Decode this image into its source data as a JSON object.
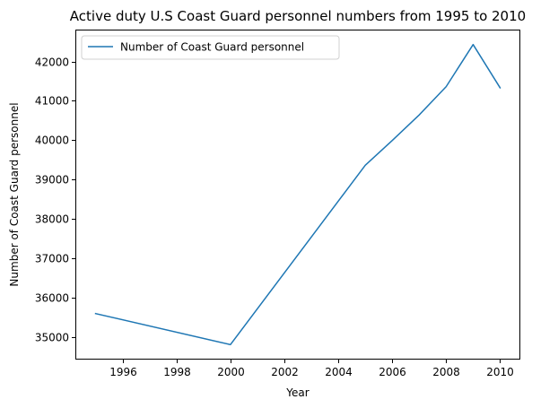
{
  "chart_data": {
    "type": "line",
    "title": "Active duty U.S Coast Guard personnel numbers from 1995 to 2010",
    "xlabel": "Year",
    "ylabel": "Number of Coast Guard personnel",
    "x": [
      1995,
      2000,
      2005,
      2006,
      2007,
      2008,
      2009,
      2010
    ],
    "series": [
      {
        "name": "Number of Coast Guard personnel",
        "color": "#1f77b4",
        "values": [
          35590,
          34800,
          39360,
          39990,
          40640,
          41360,
          42430,
          41330
        ]
      }
    ],
    "xlim": [
      1994.25,
      2010.75
    ],
    "ylim": [
      34420,
      42810
    ],
    "xticks": [
      1996,
      1998,
      2000,
      2002,
      2004,
      2006,
      2008,
      2010
    ],
    "yticks": [
      35000,
      36000,
      37000,
      38000,
      39000,
      40000,
      41000,
      42000
    ],
    "xtick_labels": [
      "1996",
      "1998",
      "2000",
      "2002",
      "2004",
      "2006",
      "2008",
      "2010"
    ],
    "ytick_labels": [
      "35000",
      "36000",
      "37000",
      "38000",
      "39000",
      "40000",
      "41000",
      "42000"
    ],
    "grid": false,
    "legend_position": "upper left"
  }
}
